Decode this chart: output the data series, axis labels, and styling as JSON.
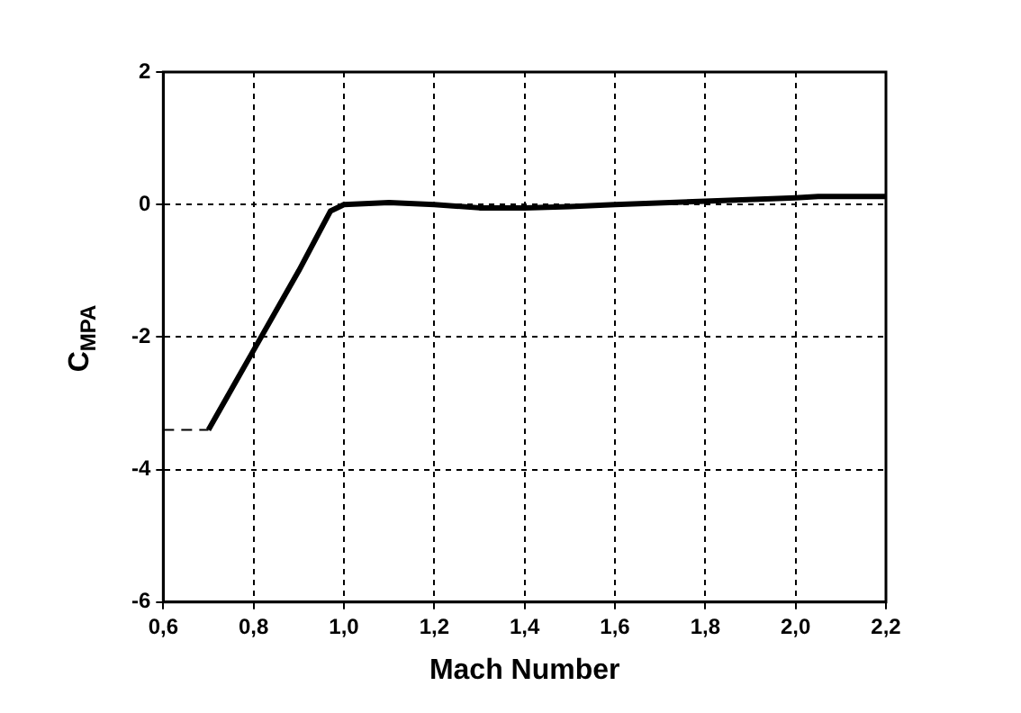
{
  "chart_data": {
    "type": "line",
    "xlabel": "Mach Number",
    "ylabel": "C$_{MPA}$",
    "xlim": [
      0.6,
      2.2
    ],
    "xticks": [
      {
        "value": 0.6,
        "label": "0,6"
      },
      {
        "value": 0.8,
        "label": "0,8"
      },
      {
        "value": 1.0,
        "label": "1,0"
      },
      {
        "value": 1.2,
        "label": "1,2"
      },
      {
        "value": 1.4,
        "label": "1,4"
      },
      {
        "value": 1.6,
        "label": "1,6"
      },
      {
        "value": 1.8,
        "label": "1,8"
      },
      {
        "value": 2.0,
        "label": "2,0"
      },
      {
        "value": 2.2,
        "label": "2,2"
      }
    ],
    "ylim": [
      -6,
      2
    ],
    "yticks": [
      -6,
      -4,
      -2,
      0,
      2
    ],
    "grid": true,
    "legend": false,
    "marker": "none",
    "series": [
      {
        "color": "#000000",
        "line_style": "solid",
        "x": [
          0.7,
          0.8,
          0.9,
          0.97,
          1.0,
          1.1,
          1.2,
          1.3,
          1.4,
          1.5,
          1.6,
          1.8,
          2.0,
          2.05,
          2.2
        ],
        "values": [
          -3.4,
          -2.2,
          -1.0,
          -0.1,
          0.0,
          0.03,
          0.0,
          -0.05,
          -0.05,
          -0.03,
          0.0,
          0.05,
          0.1,
          0.12,
          0.12
        ]
      },
      {
        "color": "#000000",
        "line_style": "dashed",
        "x": [
          0.6,
          0.7
        ],
        "values": [
          -3.4,
          -3.4
        ]
      }
    ]
  }
}
